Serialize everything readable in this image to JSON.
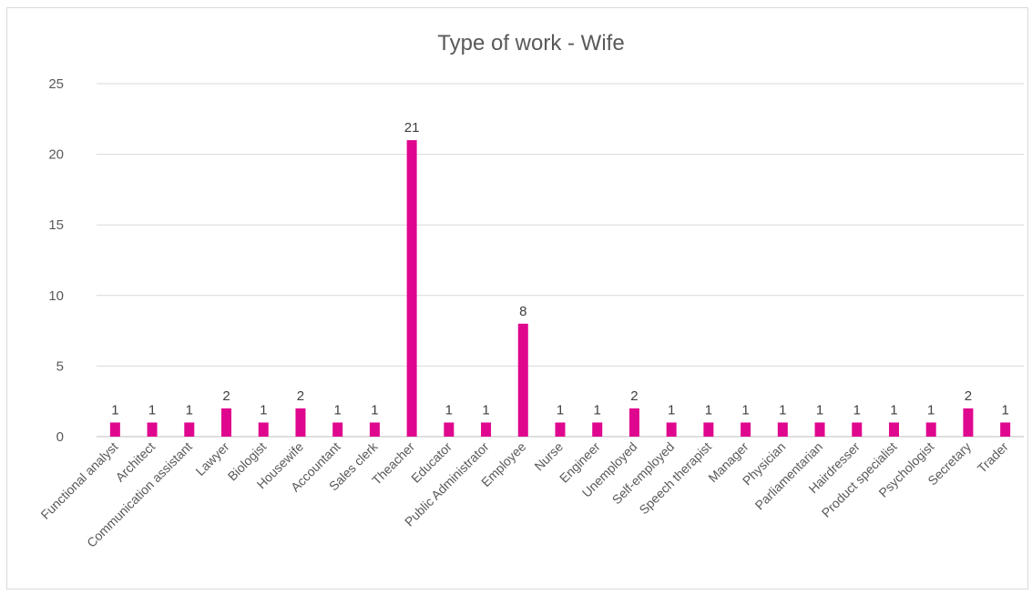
{
  "chart_data": {
    "type": "bar",
    "title": "Type of work - Wife",
    "xlabel": "",
    "ylabel": "",
    "ylim": [
      0,
      25
    ],
    "yticks": [
      0,
      5,
      10,
      15,
      20,
      25
    ],
    "grid": true,
    "legend": "none",
    "bar_color": "#E0078F",
    "categories": [
      "Functional analyst",
      "Architect",
      "Communication assistant",
      "Lawyer",
      "Biologist",
      "Housewife",
      "Accountant",
      "Sales clerk",
      "Theacher",
      "Educator",
      "Public Administrator",
      "Employee",
      "Nurse",
      "Engineer",
      "Unemployed",
      "Self-employed",
      "Speech therapist",
      "Manager",
      "Physician",
      "Parliamentarian",
      "Hairdresser",
      "Product specialist",
      "Psychologist",
      "Secretary",
      "Trader"
    ],
    "values": [
      1,
      1,
      1,
      2,
      1,
      2,
      1,
      1,
      21,
      1,
      1,
      8,
      1,
      1,
      2,
      1,
      1,
      1,
      1,
      1,
      1,
      1,
      1,
      2,
      1
    ]
  }
}
